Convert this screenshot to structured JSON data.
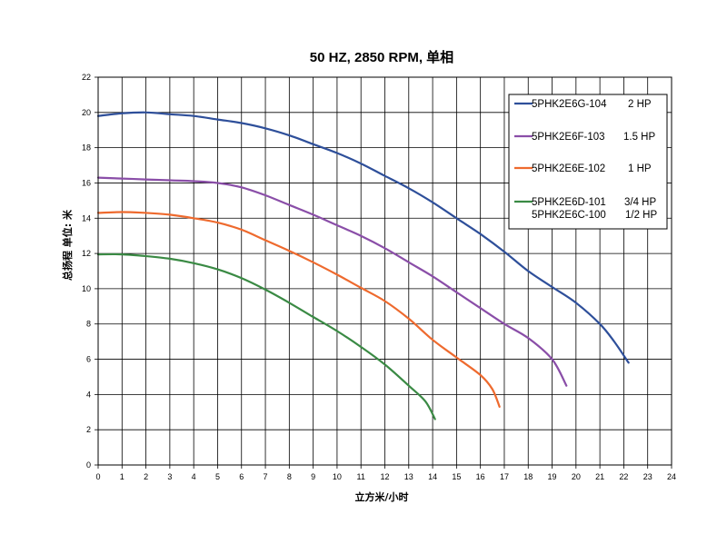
{
  "chart_data": {
    "type": "line",
    "title": "50 HZ, 2850 RPM, 单相",
    "xlabel": "立方米/小时",
    "ylabel": "总扬程 单位: 米",
    "xlim": [
      0,
      24
    ],
    "ylim": [
      0,
      22
    ],
    "x_ticks": [
      "0",
      "1",
      "2",
      "3",
      "4",
      "5",
      "6",
      "7",
      "8",
      "9",
      "10",
      "11",
      "12",
      "13",
      "14",
      "15",
      "16",
      "17",
      "18",
      "19",
      "20",
      "21",
      "22",
      "23",
      "24"
    ],
    "y_ticks": [
      "0",
      "2",
      "4",
      "6",
      "8",
      "10",
      "12",
      "14",
      "16",
      "18",
      "20",
      "22"
    ],
    "grid": true,
    "legend_position": "top-right",
    "series": [
      {
        "name": "5PHK2E6G-104",
        "hp": "2 HP",
        "color": "#2e4f9a",
        "points": [
          [
            0,
            19.8
          ],
          [
            1,
            19.95
          ],
          [
            2,
            20.0
          ],
          [
            3,
            19.9
          ],
          [
            4,
            19.8
          ],
          [
            5,
            19.6
          ],
          [
            6,
            19.4
          ],
          [
            7,
            19.1
          ],
          [
            8,
            18.7
          ],
          [
            9,
            18.2
          ],
          [
            10,
            17.7
          ],
          [
            11,
            17.1
          ],
          [
            12,
            16.4
          ],
          [
            13,
            15.7
          ],
          [
            14,
            14.9
          ],
          [
            15,
            14.0
          ],
          [
            16,
            13.1
          ],
          [
            17,
            12.1
          ],
          [
            18,
            11.0
          ],
          [
            19,
            10.1
          ],
          [
            20,
            9.2
          ],
          [
            21,
            8.0
          ],
          [
            21.6,
            7.0
          ],
          [
            22.2,
            5.8
          ]
        ]
      },
      {
        "name": "5PHK2E6F-103",
        "hp": "1.5 HP",
        "color": "#8a4ea8",
        "points": [
          [
            0,
            16.3
          ],
          [
            1,
            16.25
          ],
          [
            2,
            16.2
          ],
          [
            3,
            16.15
          ],
          [
            4,
            16.1
          ],
          [
            5,
            16.0
          ],
          [
            6,
            15.75
          ],
          [
            7,
            15.3
          ],
          [
            8,
            14.75
          ],
          [
            9,
            14.2
          ],
          [
            10,
            13.6
          ],
          [
            11,
            13.0
          ],
          [
            12,
            12.3
          ],
          [
            13,
            11.5
          ],
          [
            14,
            10.7
          ],
          [
            15,
            9.8
          ],
          [
            16,
            8.9
          ],
          [
            17,
            8.0
          ],
          [
            18,
            7.2
          ],
          [
            19,
            6.0
          ],
          [
            19.6,
            4.5
          ]
        ]
      },
      {
        "name": "5PHK2E6E-102",
        "hp": "1 HP",
        "color": "#ee6a2e",
        "points": [
          [
            0,
            14.3
          ],
          [
            1,
            14.35
          ],
          [
            2,
            14.3
          ],
          [
            3,
            14.2
          ],
          [
            4,
            14.0
          ],
          [
            5,
            13.75
          ],
          [
            6,
            13.35
          ],
          [
            7,
            12.75
          ],
          [
            8,
            12.15
          ],
          [
            9,
            11.5
          ],
          [
            10,
            10.8
          ],
          [
            11,
            10.05
          ],
          [
            12,
            9.3
          ],
          [
            13,
            8.3
          ],
          [
            14,
            7.1
          ],
          [
            15,
            6.1
          ],
          [
            16,
            5.1
          ],
          [
            16.5,
            4.3
          ],
          [
            16.8,
            3.3
          ]
        ]
      },
      {
        "name": "5PHK2E6D-101",
        "hp": "3/4 HP",
        "name2": "5PHK2E6C-100",
        "hp2": "1/2 HP",
        "color": "#3a8a44",
        "points": [
          [
            0,
            11.95
          ],
          [
            1,
            11.95
          ],
          [
            2,
            11.85
          ],
          [
            3,
            11.7
          ],
          [
            4,
            11.45
          ],
          [
            5,
            11.1
          ],
          [
            6,
            10.6
          ],
          [
            7,
            9.95
          ],
          [
            8,
            9.2
          ],
          [
            9,
            8.4
          ],
          [
            10,
            7.6
          ],
          [
            11,
            6.7
          ],
          [
            12,
            5.7
          ],
          [
            13,
            4.5
          ],
          [
            13.7,
            3.6
          ],
          [
            14.1,
            2.6
          ]
        ]
      }
    ]
  }
}
